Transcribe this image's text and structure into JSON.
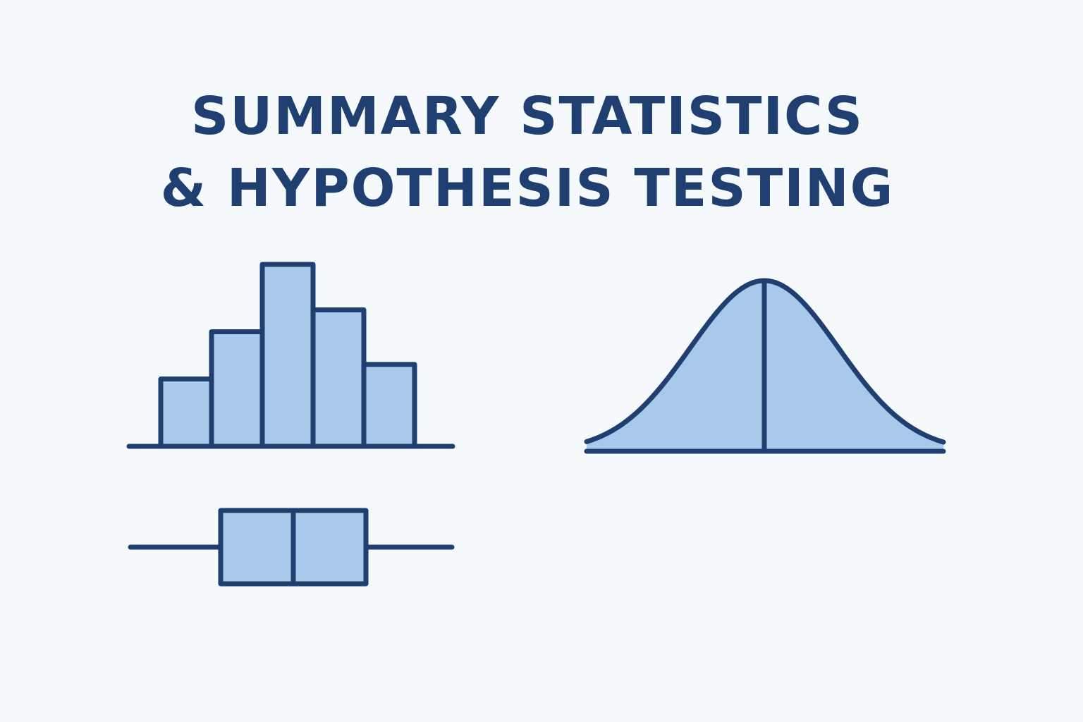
{
  "title": {
    "line1": "SUMMARY STATISTICS",
    "line2": "& HYPOTHESIS TESTING"
  },
  "colors": {
    "background": "#f5f9fc",
    "stroke": "#1f3f70",
    "fill": "#a9c9eb"
  },
  "illustrations": {
    "histogram": {
      "relative_heights": [
        0.37,
        0.63,
        1.0,
        0.75,
        0.45
      ]
    },
    "normal_curve": {
      "shape": "bell",
      "center_line": true
    },
    "box_plot": {
      "median_fraction": 0.5
    }
  }
}
